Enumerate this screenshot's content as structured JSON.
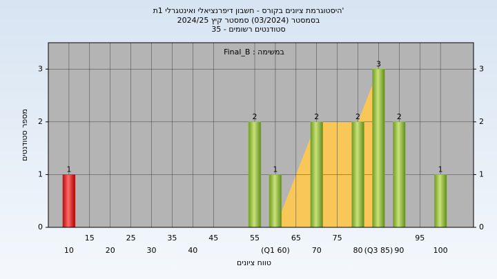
{
  "chart_data": {
    "type": "histogram",
    "title": "היסטוגרמת ציונים בקורס - חשבון דיפרנציאלי ואינטגרלי 1ת'",
    "subtitle": [
      "בסמסטר  (03/2024)  סמסטר קיץ  2024/25",
      "סטודנטים רשומים - 35"
    ],
    "annotation": "Final_B : במשימה",
    "x_label": "טווח ציונים",
    "y_label": "מספר סטודנטים",
    "x": [
      10,
      55,
      60,
      70,
      80,
      85,
      90,
      100
    ],
    "values": [
      1,
      2,
      1,
      2,
      2,
      3,
      2,
      1
    ],
    "colors": [
      "#e02828",
      "#8cbf3a",
      "#8cbf3a",
      "#8cbf3a",
      "#8cbf3a",
      "#8cbf3a",
      "#8cbf3a",
      "#8cbf3a"
    ],
    "area": {
      "color": "#ffc94d",
      "x": [
        60,
        70,
        80,
        85
      ],
      "values": [
        0,
        2,
        2,
        3
      ]
    },
    "xlim": [
      5,
      108
    ],
    "ylim": [
      0,
      3.5
    ],
    "xticks": [
      10,
      15,
      20,
      25,
      30,
      35,
      40,
      45,
      55,
      {
        "value": 60,
        "label": "(Q1 60)"
      },
      65,
      70,
      75,
      80,
      {
        "value": 85,
        "label": "(Q3 85)"
      },
      90,
      95,
      100
    ],
    "yticks": [
      0,
      1,
      2,
      3
    ],
    "grid": true
  }
}
